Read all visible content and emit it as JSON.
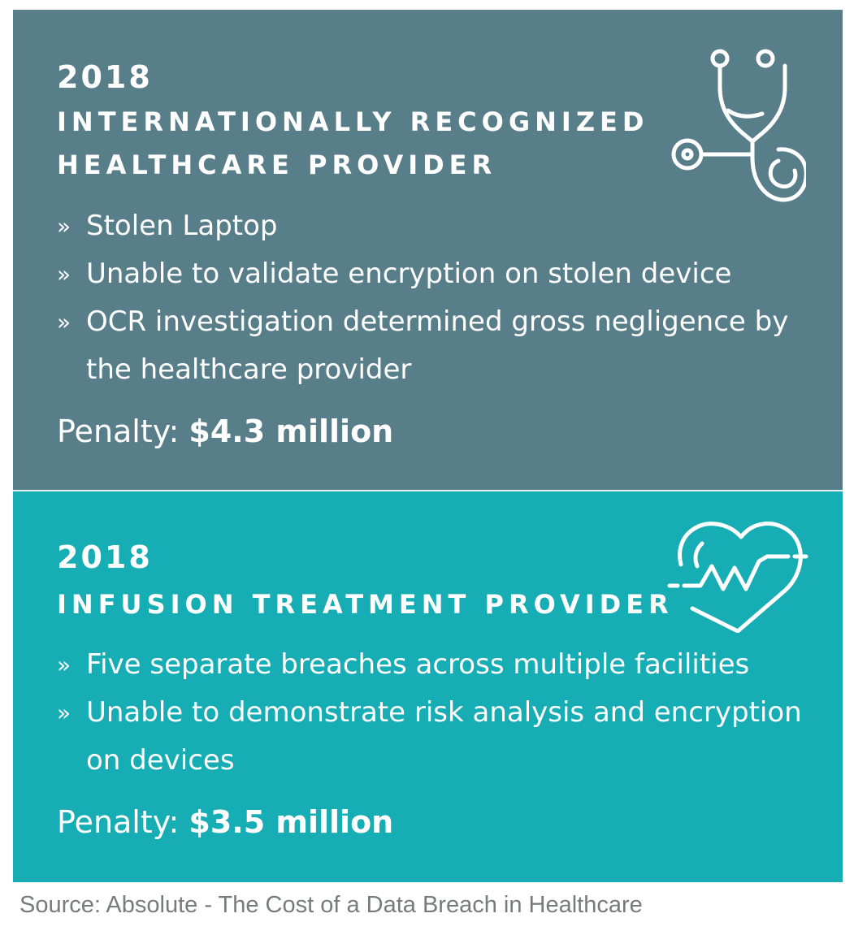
{
  "cases": [
    {
      "year": "2018",
      "heading_lines": [
        "INTERNATIONALLY RECOGNIZED",
        "HEALTHCARE PROVIDER"
      ],
      "icon": "stethoscope-icon",
      "bullet_marker": "»",
      "bullets": [
        "Stolen Laptop",
        "Unable to validate encryption on stolen device",
        "OCR investigation determined gross negligence by the healthcare provider"
      ],
      "penalty_label": "Penalty:",
      "penalty_amount": "$4.3 million",
      "color": "#587e89"
    },
    {
      "year": "2018",
      "heading_lines": [
        "INFUSION TREATMENT PROVIDER"
      ],
      "icon": "heart-pulse-icon",
      "bullet_marker": "»",
      "bullets": [
        "Five separate breaches across multiple facilities",
        "Unable to demonstrate risk analysis and encryption on devices"
      ],
      "penalty_label": "Penalty:",
      "penalty_amount": "$3.5 million",
      "color": "#17adb5"
    }
  ],
  "source": "Source: Absolute - The Cost of a Data Breach in Healthcare"
}
